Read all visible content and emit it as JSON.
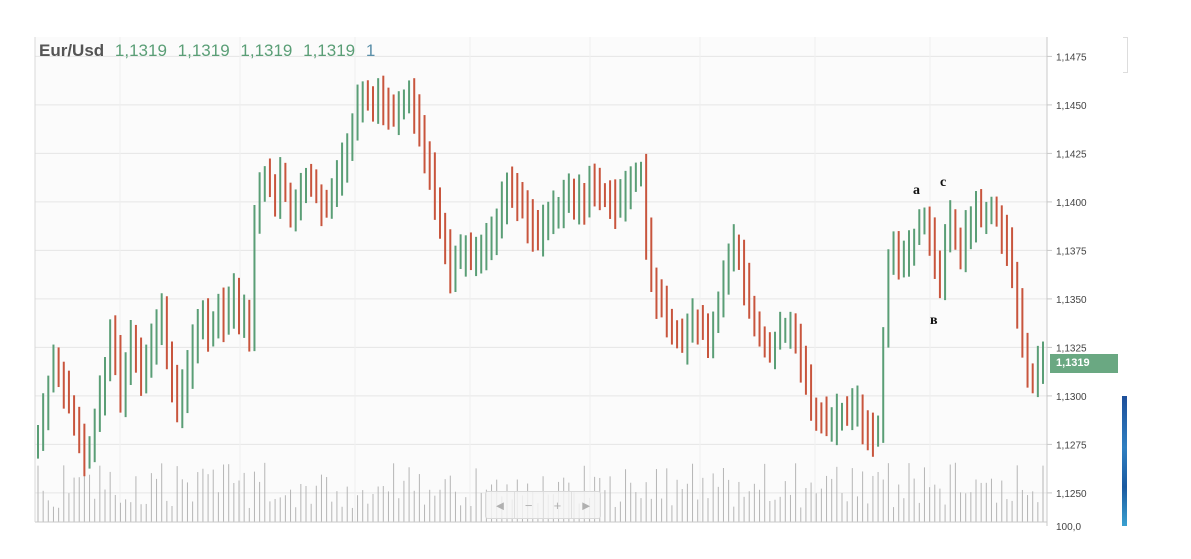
{
  "header": {
    "symbol": "Eur/Usd",
    "open": "1,1319",
    "high": "1,1319",
    "low": "1,1319",
    "close": "1,1319",
    "volume": "1"
  },
  "last_price_label": "1,1319",
  "annotations": {
    "a": "a",
    "c": "c",
    "b": "в"
  },
  "navigator": {
    "left": "◄",
    "minus": "−",
    "plus": "+",
    "right": "►"
  },
  "colors": {
    "up": "#5a9e76",
    "down": "#c8553d",
    "volume": "#b5b5b5",
    "grid": "#e6e6e6"
  },
  "chart_data": {
    "type": "ohlc",
    "title": "Eur/Usd",
    "y_ticks": [
      "1,1250",
      "1,1275",
      "1,1300",
      "1,1325",
      "1,1350",
      "1,1375",
      "1,1400",
      "1,1425",
      "1,1450",
      "1,1475"
    ],
    "ylim": [
      1.1235,
      1.1485
    ],
    "volume_label": "100,0",
    "grid": true,
    "close": [
      1.1281,
      1.129,
      1.1306,
      1.1318,
      1.131,
      1.1304,
      1.1295,
      1.1285,
      1.1278,
      1.127,
      1.1275,
      1.1288,
      1.13,
      1.1316,
      1.1334,
      1.132,
      1.13,
      1.1315,
      1.133,
      1.132,
      1.1312,
      1.1318,
      1.1328,
      1.1336,
      1.1342,
      1.132,
      1.1304,
      1.1292,
      1.1303,
      1.1315,
      1.1325,
      1.1335,
      1.1343,
      1.133,
      1.1338,
      1.1344,
      1.1338,
      1.1345,
      1.1355,
      1.1338,
      1.1345,
      1.1328,
      1.139,
      1.1405,
      1.1412,
      1.1408,
      1.14,
      1.1415,
      1.1405,
      1.1395,
      1.14,
      1.141,
      1.1412,
      1.1408,
      1.1404,
      1.1398,
      1.1396,
      1.1402,
      1.1412,
      1.142,
      1.143,
      1.1441,
      1.145,
      1.1458,
      1.1455,
      1.1452,
      1.1455,
      1.145,
      1.1446,
      1.1444,
      1.1448,
      1.145,
      1.1452,
      1.1445,
      1.1436,
      1.1426,
      1.1416,
      1.1402,
      1.139,
      1.1376,
      1.1362,
      1.137,
      1.1372,
      1.1373,
      1.137,
      1.1373,
      1.1375,
      1.138,
      1.1384,
      1.1392,
      1.14,
      1.141,
      1.1405,
      1.14,
      1.1396,
      1.139,
      1.1385,
      1.1383,
      1.1387,
      1.1392,
      1.1396,
      1.1398,
      1.14,
      1.1404,
      1.14,
      1.1403,
      1.14,
      1.141,
      1.1406,
      1.1404,
      1.1402,
      1.14,
      1.1398,
      1.14,
      1.1408,
      1.141,
      1.1412,
      1.1416,
      1.138,
      1.136,
      1.135,
      1.1345,
      1.134,
      1.1335,
      1.133,
      1.1328,
      1.1336,
      1.134,
      1.1337,
      1.1334,
      1.133,
      1.1338,
      1.1348,
      1.1358,
      1.137,
      1.1378,
      1.137,
      1.1358,
      1.1346,
      1.1336,
      1.133,
      1.1327,
      1.1325,
      1.1328,
      1.1332,
      1.1334,
      1.1338,
      1.133,
      1.1318,
      1.1305,
      1.1295,
      1.1292,
      1.129,
      1.1284,
      1.1286,
      1.129,
      1.1292,
      1.129,
      1.1294,
      1.1296,
      1.1285,
      1.128,
      1.1278,
      1.1282,
      1.133,
      1.1368,
      1.1375,
      1.1368,
      1.1372,
      1.1376,
      1.1382,
      1.139,
      1.1392,
      1.1384,
      1.1368,
      1.136,
      1.1378,
      1.1392,
      1.138,
      1.137,
      1.1384,
      1.139,
      1.1396,
      1.1394,
      1.1396,
      1.1398,
      1.1392,
      1.1385,
      1.1376,
      1.1362,
      1.1345,
      1.1325,
      1.1312,
      1.131,
      1.1314,
      1.1319
    ]
  }
}
